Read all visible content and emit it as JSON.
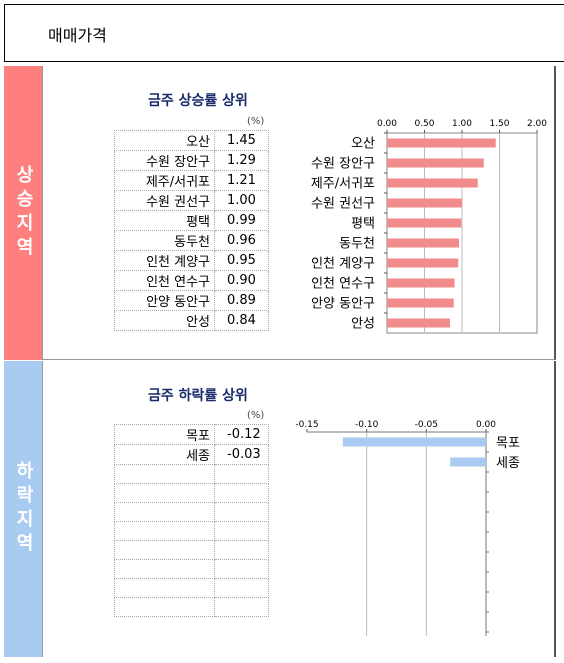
{
  "header": {
    "title": "매매가격"
  },
  "rising": {
    "side_label": "상승지역",
    "title": "금주 상승률 상위",
    "unit": "(%)",
    "rows": [
      {
        "name": "오산",
        "value": "1.45"
      },
      {
        "name": "수원 장안구",
        "value": "1.29"
      },
      {
        "name": "제주/서귀포",
        "value": "1.21"
      },
      {
        "name": "수원 권선구",
        "value": "1.00"
      },
      {
        "name": "평택",
        "value": "0.99"
      },
      {
        "name": "동두천",
        "value": "0.96"
      },
      {
        "name": "인천 계양구",
        "value": "0.95"
      },
      {
        "name": "인천 연수구",
        "value": "0.90"
      },
      {
        "name": "안양 동안구",
        "value": "0.89"
      },
      {
        "name": "안성",
        "value": "0.84"
      }
    ]
  },
  "falling": {
    "side_label": "하락지역",
    "title": "금주 하락률 상위",
    "unit": "(%)",
    "rows": [
      {
        "name": "목포",
        "value": "-0.12"
      },
      {
        "name": "세종",
        "value": "-0.03"
      },
      {
        "name": "",
        "value": ""
      },
      {
        "name": "",
        "value": ""
      },
      {
        "name": "",
        "value": ""
      },
      {
        "name": "",
        "value": ""
      },
      {
        "name": "",
        "value": ""
      },
      {
        "name": "",
        "value": ""
      },
      {
        "name": "",
        "value": ""
      },
      {
        "name": "",
        "value": ""
      }
    ]
  },
  "chart_data": [
    {
      "type": "bar",
      "orientation": "horizontal",
      "categories": [
        "오산",
        "수원 장안구",
        "제주/서귀포",
        "수원 권선구",
        "평택",
        "동두천",
        "인천 계양구",
        "인천 연수구",
        "안양 동안구",
        "안성"
      ],
      "values": [
        1.45,
        1.29,
        1.21,
        1.0,
        0.99,
        0.96,
        0.95,
        0.9,
        0.89,
        0.84
      ],
      "xlim": [
        0,
        2
      ],
      "ticks": [
        "0.00",
        "0.50",
        "1.00",
        "1.50",
        "2.00"
      ],
      "tick_values": [
        0,
        0.5,
        1,
        1.5,
        2
      ],
      "bar_color": "#f28b8b",
      "grid": true
    },
    {
      "type": "bar",
      "orientation": "horizontal",
      "categories": [
        "목포",
        "세종"
      ],
      "values": [
        -0.12,
        -0.03
      ],
      "xlim": [
        -0.15,
        0
      ],
      "ticks": [
        "-0.15",
        "-0.10",
        "-0.05",
        "0.00"
      ],
      "tick_values": [
        -0.15,
        -0.1,
        -0.05,
        0
      ],
      "bar_color": "#a9cbf2",
      "grid": true
    }
  ]
}
